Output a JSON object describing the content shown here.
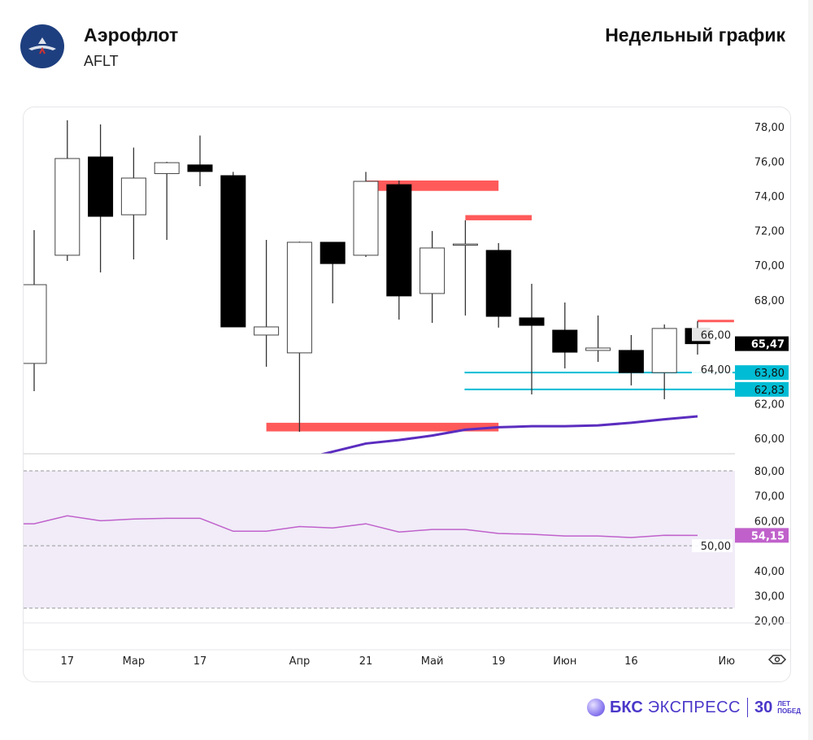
{
  "header": {
    "title": "Аэрофлот",
    "ticker": "AFLT",
    "period": "Недельный график"
  },
  "brand": {
    "name_bold": "БКС",
    "name": "ЭКСПРЕСС",
    "years": "30",
    "years_caption_1": "ЛЕТ",
    "years_caption_2": "ПОБЕД"
  },
  "colors": {
    "bull": "#ffffff",
    "bear": "#000000",
    "zone": "#ff5a5a",
    "level": "#00bcd4",
    "ma": "#5b2dbf",
    "rsi": "#c061cb",
    "rsi_band": "#f1ecf8"
  },
  "chart_data": [
    {
      "type": "candlestick",
      "title": "Аэрофлот AFLT — Недельный график",
      "ylim": [
        60,
        78
      ],
      "yticks": [
        "78,00",
        "76,00",
        "74,00",
        "72,00",
        "70,00",
        "68,00",
        "66,00",
        "64,00",
        "62,00",
        "60,00"
      ],
      "xticks": [
        {
          "label": "17",
          "i": 1
        },
        {
          "label": "Мар",
          "i": 3
        },
        {
          "label": "17",
          "i": 5
        },
        {
          "label": "Апр",
          "i": 8
        },
        {
          "label": "21",
          "i": 10
        },
        {
          "label": "Май",
          "i": 12
        },
        {
          "label": "19",
          "i": 14
        },
        {
          "label": "Июн",
          "i": 16
        },
        {
          "label": "16",
          "i": 18
        },
        {
          "label": "Ию",
          "i": 21
        }
      ],
      "candles": [
        {
          "o": 64.33,
          "h": 72.03,
          "l": 62.73,
          "c": 68.88
        },
        {
          "o": 70.58,
          "h": 78.38,
          "l": 70.25,
          "c": 76.17
        },
        {
          "o": 76.26,
          "h": 78.14,
          "l": 69.59,
          "c": 72.83
        },
        {
          "o": 72.92,
          "h": 76.8,
          "l": 70.34,
          "c": 75.04
        },
        {
          "o": 75.3,
          "h": 75.98,
          "l": 71.47,
          "c": 75.93
        },
        {
          "o": 75.8,
          "h": 77.5,
          "l": 74.57,
          "c": 75.42
        },
        {
          "o": 75.18,
          "h": 75.4,
          "l": 66.44,
          "c": 66.44
        },
        {
          "o": 65.97,
          "h": 71.47,
          "l": 64.14,
          "c": 66.44
        },
        {
          "o": 64.94,
          "h": 71.37,
          "l": 60.38,
          "c": 71.33
        },
        {
          "o": 71.33,
          "h": 71.33,
          "l": 67.8,
          "c": 70.1
        },
        {
          "o": 70.58,
          "h": 75.4,
          "l": 70.48,
          "c": 74.85
        },
        {
          "o": 74.66,
          "h": 74.9,
          "l": 66.86,
          "c": 68.23
        },
        {
          "o": 68.37,
          "h": 71.98,
          "l": 66.67,
          "c": 71.0
        },
        {
          "o": 71.23,
          "h": 72.6,
          "l": 67.1,
          "c": 71.23
        },
        {
          "o": 70.86,
          "h": 71.28,
          "l": 66.4,
          "c": 67.05
        },
        {
          "o": 66.96,
          "h": 68.93,
          "l": 62.54,
          "c": 66.53
        },
        {
          "o": 66.25,
          "h": 67.85,
          "l": 64.04,
          "c": 64.98
        },
        {
          "o": 65.08,
          "h": 67.1,
          "l": 64.42,
          "c": 65.22
        },
        {
          "o": 65.08,
          "h": 65.97,
          "l": 63.06,
          "c": 63.8
        },
        {
          "o": 63.8,
          "h": 66.58,
          "l": 62.26,
          "c": 66.35
        },
        {
          "o": 66.35,
          "h": 66.77,
          "l": 64.84,
          "c": 65.47
        }
      ],
      "last_price": {
        "value": 65.47,
        "label": "65,47"
      },
      "levels": [
        {
          "value": 63.8,
          "label": "63,80",
          "from": 13
        },
        {
          "value": 62.83,
          "label": "62,83",
          "from": 13
        }
      ],
      "zones": [
        {
          "from": 10,
          "to": 14,
          "top": 74.9,
          "bottom": 74.3
        },
        {
          "from": 13,
          "to": 15,
          "top": 72.9,
          "bottom": 72.6
        },
        {
          "from": 7,
          "to": 14,
          "top": 60.9,
          "bottom": 60.4
        },
        {
          "from": 20,
          "to": 21.1,
          "top": 66.85,
          "bottom": 66.75
        }
      ],
      "ma": [
        [
          8.3,
          58.9
        ],
        [
          10,
          59.7
        ],
        [
          11,
          59.9
        ],
        [
          12,
          60.16
        ],
        [
          13,
          60.5
        ],
        [
          14,
          60.64
        ],
        [
          15,
          60.7
        ],
        [
          16,
          60.7
        ],
        [
          17,
          60.75
        ],
        [
          18,
          60.9
        ],
        [
          19,
          61.1
        ],
        [
          20,
          61.27
        ]
      ]
    },
    {
      "type": "line",
      "title": "RSI",
      "ylim": [
        20,
        80
      ],
      "yticks": [
        "80,00",
        "70,00",
        "60,00",
        "50,00",
        "40,00",
        "30,00",
        "20,00"
      ],
      "bands": [
        80,
        50,
        25
      ],
      "values": [
        58.8,
        62,
        60,
        60.7,
        61,
        61,
        55.8,
        55.8,
        57.7,
        57.1,
        58.8,
        55.5,
        56.5,
        56.5,
        54.9,
        54.6,
        53.9,
        53.9,
        53.3,
        54.2,
        54.15
      ],
      "last": {
        "value": 54.15,
        "label": "54,15"
      }
    }
  ]
}
